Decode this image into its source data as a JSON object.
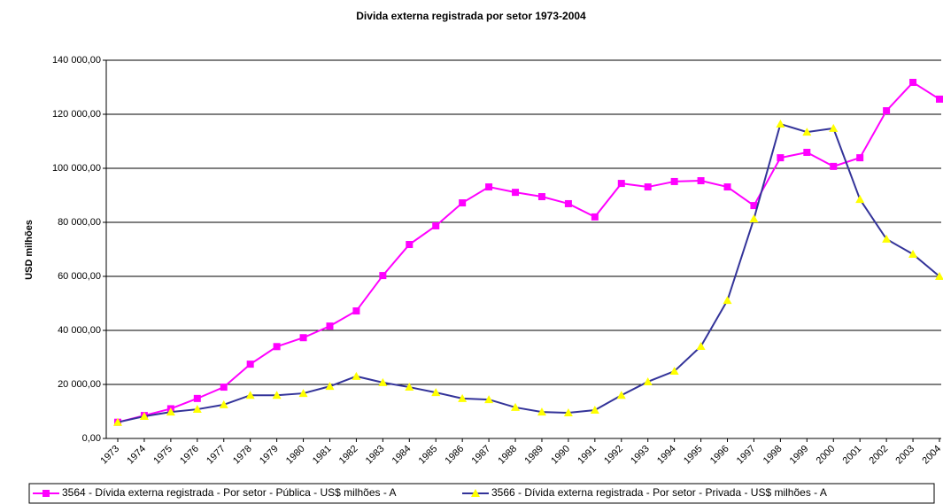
{
  "chart_data": {
    "type": "line",
    "title": "Divida externa registrada por setor 1973-2004",
    "y_label": "USD milhões",
    "categories": [
      "1973",
      "1974",
      "1975",
      "1976",
      "1977",
      "1978",
      "1979",
      "1980",
      "1981",
      "1982",
      "1983",
      "1984",
      "1985",
      "1986",
      "1987",
      "1988",
      "1989",
      "1990",
      "1991",
      "1992",
      "1993",
      "1994",
      "1995",
      "1996",
      "1997",
      "1998",
      "1999",
      "2000",
      "2001",
      "2002",
      "2003",
      "2004"
    ],
    "series": [
      {
        "name": "3564 - Dívida externa registrada - Por setor - Pública - US$ milhões - A",
        "color": "#ff00ff",
        "marker": "square",
        "marker_color": "#ff00ff",
        "values": [
          6000,
          8500,
          11000,
          14800,
          19000,
          27500,
          34000,
          37300,
          41600,
          47200,
          60300,
          71800,
          78700,
          87200,
          93100,
          91100,
          89500,
          86900,
          82000,
          94400,
          93100,
          95100,
          95400,
          93100,
          86200,
          103900,
          105900,
          100700,
          103900,
          121300,
          131800,
          125600
        ]
      },
      {
        "name": "3566 - Dívida externa registrada - Por setor - Privada - US$ milhões - A",
        "color": "#333399",
        "marker": "triangle",
        "marker_color": "#ffff00",
        "values": [
          6000,
          8200,
          9800,
          10800,
          12500,
          16000,
          16000,
          16700,
          19300,
          23000,
          20700,
          19000,
          17000,
          14800,
          14400,
          11500,
          9800,
          9500,
          10500,
          16000,
          21000,
          24900,
          34100,
          51100,
          81300,
          116400,
          113400,
          114800,
          88500,
          73800,
          68200,
          60000
        ]
      }
    ],
    "ylim": [
      0,
      140000
    ],
    "yticks": [
      {
        "value": 0,
        "label": "0,00"
      },
      {
        "value": 20000,
        "label": "20 000,00"
      },
      {
        "value": 40000,
        "label": "40 000,00"
      },
      {
        "value": 60000,
        "label": "60 000,00"
      },
      {
        "value": 80000,
        "label": "80 000,00"
      },
      {
        "value": 100000,
        "label": "100 000,00"
      },
      {
        "value": 120000,
        "label": "120 000,00"
      },
      {
        "value": 140000,
        "label": "140 000,00"
      }
    ],
    "grid": true
  }
}
